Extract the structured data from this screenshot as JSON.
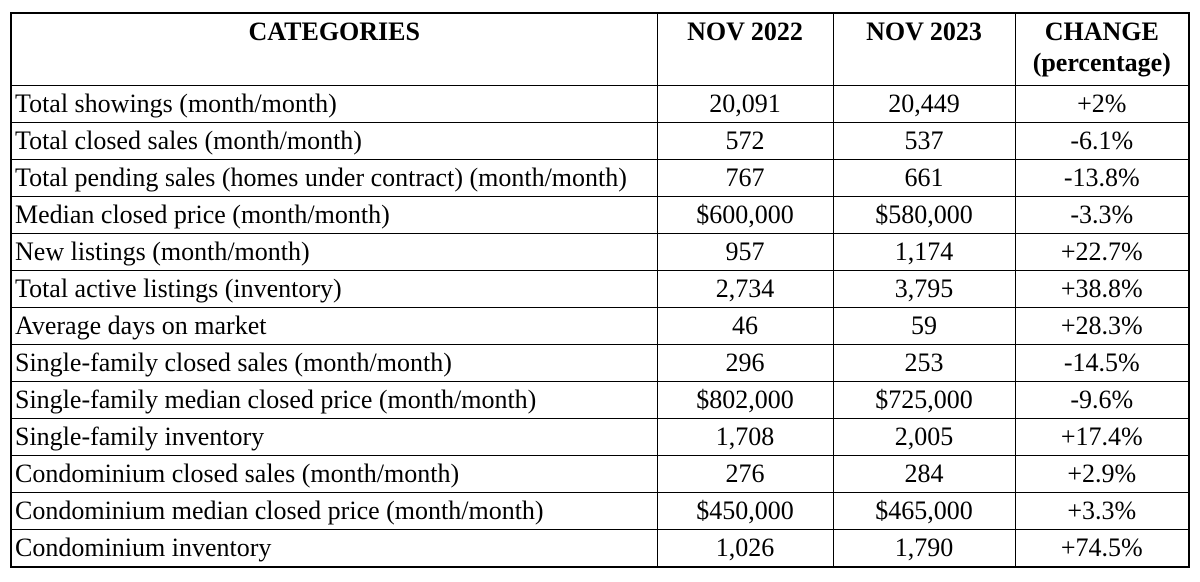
{
  "table": {
    "header": {
      "categories": "CATEGORIES",
      "nov2022": "NOV 2022",
      "nov2023": "NOV 2023",
      "change_line1": "CHANGE",
      "change_line2": "(percentage)"
    },
    "rows": [
      {
        "category": "Total showings (month/month)",
        "nov2022": "20,091",
        "nov2023": "20,449",
        "change": "+2%"
      },
      {
        "category": "Total closed sales (month/month)",
        "nov2022": "572",
        "nov2023": "537",
        "change": "-6.1%"
      },
      {
        "category": "Total pending sales (homes under contract) (month/month)",
        "nov2022": "767",
        "nov2023": "661",
        "change": "-13.8%"
      },
      {
        "category": "Median closed price (month/month)",
        "nov2022": "$600,000",
        "nov2023": "$580,000",
        "change": "-3.3%"
      },
      {
        "category": "New listings (month/month)",
        "nov2022": "957",
        "nov2023": "1,174",
        "change": "+22.7%"
      },
      {
        "category": "Total active listings (inventory)",
        "nov2022": "2,734",
        "nov2023": "3,795",
        "change": "+38.8%"
      },
      {
        "category": "Average days on market",
        "nov2022": "46",
        "nov2023": "59",
        "change": "+28.3%"
      },
      {
        "category": "Single-family closed sales (month/month)",
        "nov2022": "296",
        "nov2023": "253",
        "change": "-14.5%"
      },
      {
        "category": "Single-family median closed price (month/month)",
        "nov2022": "$802,000",
        "nov2023": "$725,000",
        "change": "-9.6%"
      },
      {
        "category": "Single-family inventory",
        "nov2022": "1,708",
        "nov2023": "2,005",
        "change": "+17.4%"
      },
      {
        "category": "Condominium closed sales (month/month)",
        "nov2022": "276",
        "nov2023": "284",
        "change": "+2.9%"
      },
      {
        "category": "Condominium median closed price (month/month)",
        "nov2022": "$450,000",
        "nov2023": "$465,000",
        "change": "+3.3%"
      },
      {
        "category": "Condominium inventory",
        "nov2022": "1,026",
        "nov2023": "1,790",
        "change": "+74.5%"
      }
    ]
  },
  "chart_data": {
    "type": "table",
    "title": "",
    "columns": [
      "CATEGORIES",
      "NOV 2022",
      "NOV 2023",
      "CHANGE (percentage)"
    ],
    "rows": [
      [
        "Total showings (month/month)",
        "20,091",
        "20,449",
        "+2%"
      ],
      [
        "Total closed sales (month/month)",
        "572",
        "537",
        "-6.1%"
      ],
      [
        "Total pending sales (homes under contract) (month/month)",
        "767",
        "661",
        "-13.8%"
      ],
      [
        "Median closed price (month/month)",
        "$600,000",
        "$580,000",
        "-3.3%"
      ],
      [
        "New listings (month/month)",
        "957",
        "1,174",
        "+22.7%"
      ],
      [
        "Total active listings (inventory)",
        "2,734",
        "3,795",
        "+38.8%"
      ],
      [
        "Average days on market",
        "46",
        "59",
        "+28.3%"
      ],
      [
        "Single-family closed sales (month/month)",
        "296",
        "253",
        "-14.5%"
      ],
      [
        "Single-family median closed price (month/month)",
        "$802,000",
        "$725,000",
        "-9.6%"
      ],
      [
        "Single-family inventory",
        "1,708",
        "2,005",
        "+17.4%"
      ],
      [
        "Condominium closed sales (month/month)",
        "276",
        "284",
        "+2.9%"
      ],
      [
        "Condominium median closed price (month/month)",
        "$450,000",
        "$465,000",
        "+3.3%"
      ],
      [
        "Condominium inventory",
        "1,026",
        "1,790",
        "+74.5%"
      ]
    ],
    "colors": {
      "border": "#000000",
      "text": "#000000",
      "background": "#ffffff"
    },
    "layout": {
      "grid": true,
      "header_bold": true,
      "category_align": "left",
      "value_align": "center"
    }
  }
}
